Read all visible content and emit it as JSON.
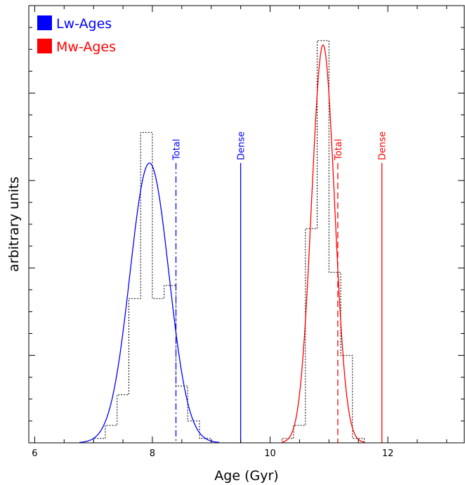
{
  "chart_data": {
    "type": "line",
    "title": "",
    "xlabel": "Age (Gyr)",
    "ylabel": "arbitrary units",
    "xlim": [
      5.9,
      13.3
    ],
    "ylim": [
      0,
      1.0
    ],
    "x_ticks": [
      6,
      8,
      10,
      12
    ],
    "x_tick_labels": [
      "6",
      "8",
      "10",
      "12"
    ],
    "legend_position": "top-left",
    "legend": [
      {
        "label": "Lw-Ages",
        "color": "#0000ff"
      },
      {
        "label": "Mw-Ages",
        "color": "#ff0000"
      }
    ],
    "series": [
      {
        "name": "Lw-Ages",
        "color": "#0000ff",
        "gaussian": {
          "mean": 7.95,
          "sigma": 0.33,
          "peak": 0.64
        },
        "histogram": {
          "bin_edges": [
            6.8,
            7.0,
            7.2,
            7.4,
            7.6,
            7.8,
            8.0,
            8.2,
            8.4,
            8.6,
            8.8,
            9.0
          ],
          "heights": [
            0.0,
            0.01,
            0.04,
            0.11,
            0.33,
            0.71,
            0.33,
            0.36,
            0.13,
            0.05,
            0.01
          ]
        },
        "markers": [
          {
            "label": "Total",
            "x": 8.4,
            "height": 0.64,
            "style": "dash-dot"
          },
          {
            "label": "Dense",
            "x": 9.5,
            "height": 0.64,
            "style": "solid"
          }
        ]
      },
      {
        "name": "Mw-Ages",
        "color": "#ff0000",
        "gaussian": {
          "mean": 10.9,
          "sigma": 0.195,
          "peak": 0.91
        },
        "histogram": {
          "bin_edges": [
            10.0,
            10.2,
            10.4,
            10.6,
            10.8,
            11.0,
            11.2,
            11.4,
            11.6,
            11.8
          ],
          "heights": [
            0.0,
            0.01,
            0.04,
            0.49,
            0.92,
            0.39,
            0.2,
            0.01,
            0.0
          ]
        },
        "markers": [
          {
            "label": "Total",
            "x": 11.15,
            "height": 0.64,
            "style": "dashed"
          },
          {
            "label": "Dense",
            "x": 11.9,
            "height": 0.64,
            "style": "solid"
          }
        ]
      }
    ]
  }
}
